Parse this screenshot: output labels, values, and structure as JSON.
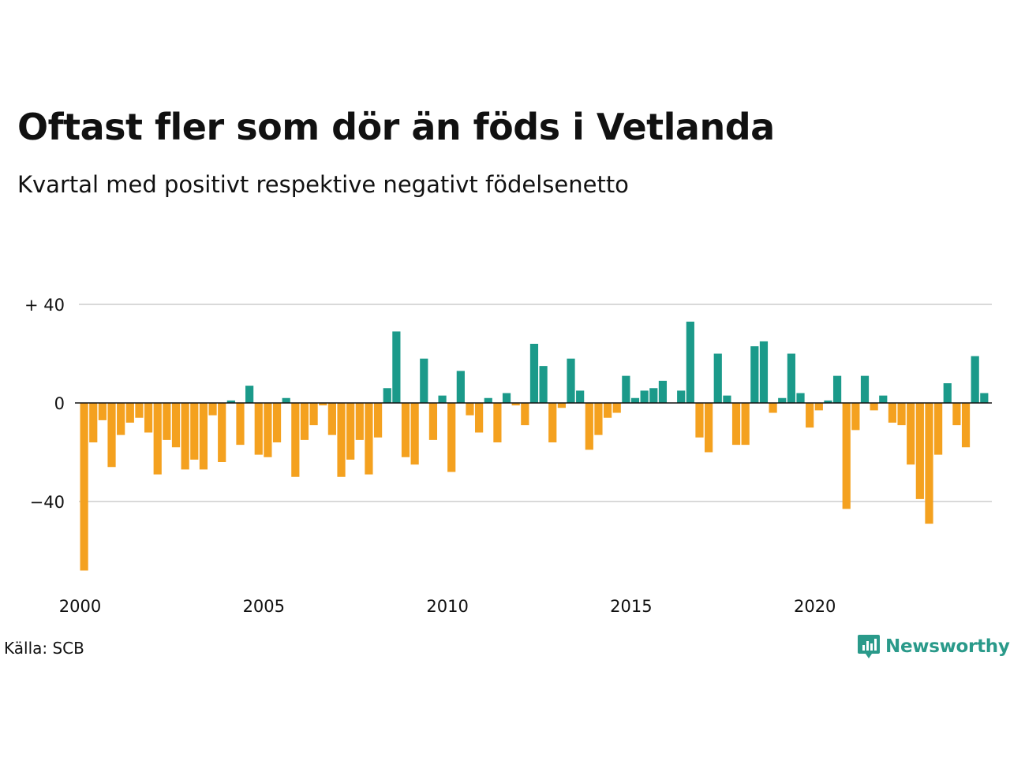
{
  "header": {
    "title": "Oftast fler som dör än föds i Vetlanda",
    "subtitle": "Kvartal med positivt respektive negativt födelsenetto"
  },
  "footer": {
    "source": "Källa: SCB",
    "brand": "Newsworthy"
  },
  "colors": {
    "positive": "#1b9a8a",
    "negative": "#f4a11f",
    "grid": "#d9d9d9",
    "brand": "#2a9a8a"
  },
  "chart_data": {
    "type": "bar",
    "title": "Oftast fler som dör än föds i Vetlanda",
    "subtitle": "Kvartal med positivt respektive negativt födelsenetto",
    "x_start": 2000,
    "x_interval": "quarter",
    "y_ticks": [
      40,
      0,
      -40
    ],
    "y_tick_labels": [
      "+ 40",
      "0",
      "−40"
    ],
    "x_ticks": [
      2000,
      2005,
      2010,
      2015,
      2020
    ],
    "x_tick_labels": [
      "2000",
      "2005",
      "2010",
      "2015",
      "2020"
    ],
    "ylim": [
      -68,
      40
    ],
    "grid": true,
    "values": [
      -68,
      -16,
      -7,
      -26,
      -13,
      -8,
      -6,
      -12,
      -29,
      -15,
      -18,
      -27,
      -23,
      -27,
      -5,
      -24,
      1,
      -17,
      7,
      -21,
      -22,
      -16,
      2,
      -30,
      -15,
      -9,
      -1,
      -13,
      -30,
      -23,
      -15,
      -29,
      -14,
      6,
      29,
      -22,
      -25,
      18,
      -15,
      3,
      -28,
      13,
      -5,
      -12,
      2,
      -16,
      4,
      -1,
      -9,
      24,
      15,
      -16,
      -2,
      18,
      5,
      -19,
      -13,
      -6,
      -4,
      11,
      2,
      5,
      6,
      9,
      0,
      5,
      33,
      -14,
      -20,
      20,
      3,
      -17,
      -17,
      23,
      25,
      -4,
      2,
      20,
      4,
      -10,
      -3,
      1,
      11,
      -43,
      -11,
      11,
      -3,
      3,
      -8,
      -9,
      -25,
      -39,
      -49,
      -21,
      8,
      -9,
      -18,
      19,
      4
    ]
  }
}
